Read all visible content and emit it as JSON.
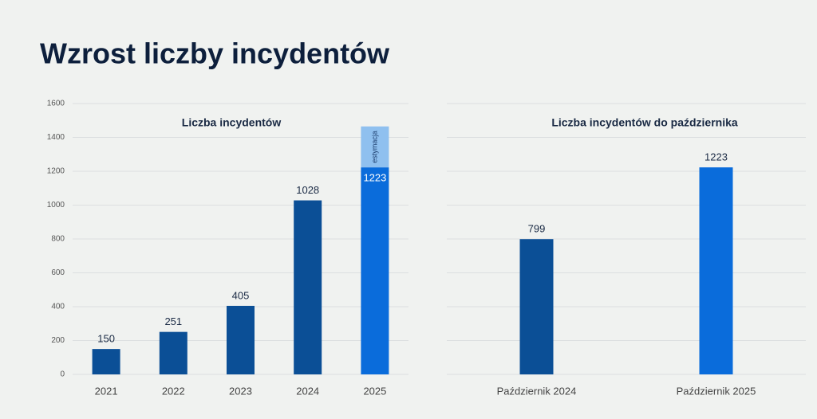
{
  "title": "Wzrost liczby incydentów",
  "chart_data": [
    {
      "type": "bar",
      "title": "Liczba incydentów",
      "categories": [
        "2021",
        "2022",
        "2023",
        "2024",
        "2025"
      ],
      "series": [
        {
          "colors": [
            "#0b4f96",
            "#0b4f96",
            "#0b4f96",
            "#0b4f96",
            "#0a6cdb"
          ],
          "values": [
            150,
            251,
            405,
            1028,
            1223
          ],
          "label_colors": [
            "#1a2a44",
            "#1a2a44",
            "#1a2a44",
            "#1a2a44",
            "#ffffff"
          ]
        },
        {
          "name": "estymacja",
          "color": "#8fc0ef",
          "values": [
            null,
            null,
            null,
            null,
            242
          ]
        }
      ],
      "ylim": [
        0,
        1600
      ],
      "yticks": [
        0,
        200,
        400,
        600,
        800,
        1000,
        1200,
        1400,
        1600
      ],
      "grid": true,
      "tick_labels": true
    },
    {
      "type": "bar",
      "title": "Liczba incydentów do października",
      "categories": [
        "Październik 2024",
        "Październik 2025"
      ],
      "series": [
        {
          "colors": [
            "#0b4f96",
            "#0a6cdb"
          ],
          "values": [
            799,
            1223
          ],
          "label_colors": [
            "#1a2a44",
            "#1a2a44"
          ]
        }
      ],
      "ylim": [
        0,
        1600
      ],
      "yticks": [
        0,
        200,
        400,
        600,
        800,
        1000,
        1200,
        1400,
        1600
      ],
      "grid": true,
      "tick_labels": false
    }
  ]
}
